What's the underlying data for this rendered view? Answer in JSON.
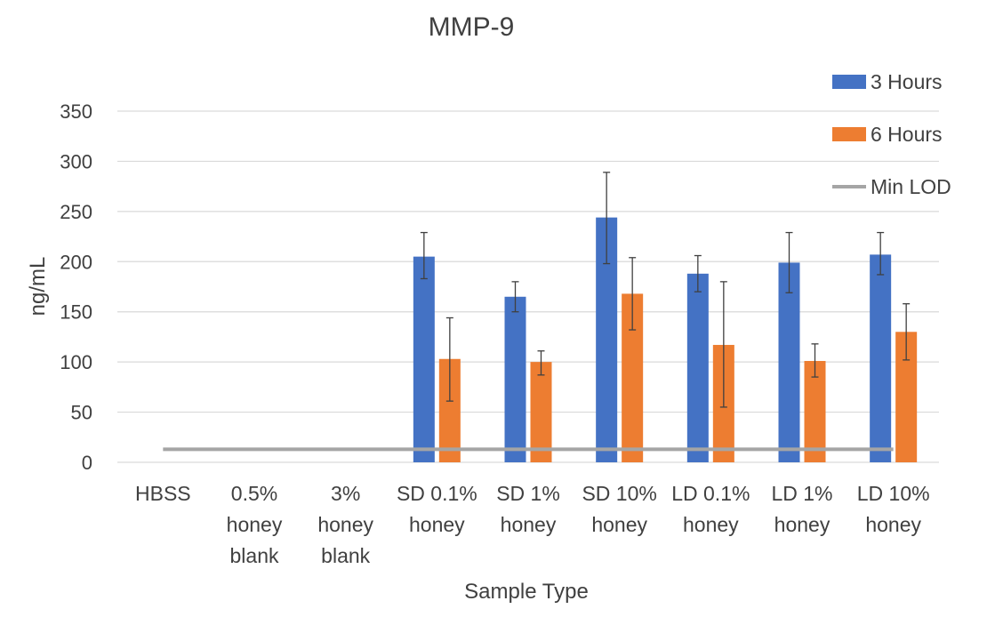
{
  "chart_data": {
    "type": "bar",
    "title": "MMP-9",
    "xlabel": "Sample Type",
    "ylabel": "ng/mL",
    "ylim": [
      0,
      350
    ],
    "yticks": [
      0,
      50,
      100,
      150,
      200,
      250,
      300,
      350
    ],
    "grid": true,
    "legend_position": "top-right",
    "categories": [
      [
        "HBSS"
      ],
      [
        "0.5%",
        "honey",
        "blank"
      ],
      [
        "3%",
        "honey",
        "blank"
      ],
      [
        "SD 0.1%",
        "honey"
      ],
      [
        "SD 1%",
        "honey"
      ],
      [
        "SD 10%",
        "honey"
      ],
      [
        "LD 0.1%",
        "honey"
      ],
      [
        "LD 1%",
        "honey"
      ],
      [
        "LD 10%",
        "honey"
      ]
    ],
    "series": [
      {
        "name": "3 Hours",
        "color": "#4472C4",
        "values": [
          null,
          null,
          null,
          205,
          165,
          244,
          188,
          199,
          207
        ],
        "error_low": [
          null,
          null,
          null,
          183,
          150,
          198,
          170,
          169,
          187
        ],
        "error_high": [
          null,
          null,
          null,
          229,
          180,
          289,
          206,
          229,
          229
        ]
      },
      {
        "name": "6 Hours",
        "color": "#ED7D31",
        "values": [
          null,
          null,
          null,
          103,
          100,
          168,
          117,
          101,
          130
        ],
        "error_low": [
          null,
          null,
          null,
          61,
          87,
          132,
          55,
          85,
          102
        ],
        "error_high": [
          null,
          null,
          null,
          144,
          111,
          204,
          180,
          118,
          158
        ]
      }
    ],
    "reference_lines": [
      {
        "name": "Min LOD",
        "color": "#A5A5A5",
        "value": 13
      }
    ]
  }
}
